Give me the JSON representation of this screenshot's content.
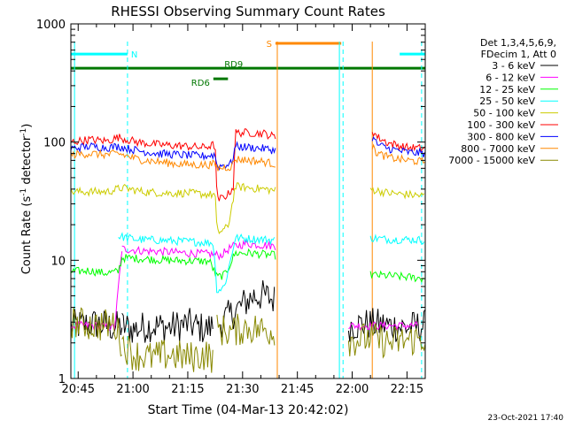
{
  "chart_data": {
    "type": "line",
    "title": "RHESSI Observing Summary Count Rates",
    "xlabel": "Start Time (04-Mar-13 20:42:02)",
    "ylabel": "Count Rate (s⁻¹ detector⁻¹)",
    "ylabel_main": "Count Rate (s",
    "ylabel_sup1": "-1",
    "ylabel_mid": " detector",
    "ylabel_sup2": "-1",
    "ylabel_end": ")",
    "y_scale": "log",
    "ylim": [
      1,
      1000
    ],
    "xlim_minutes": [
      -2,
      95
    ],
    "x_tick_minutes": [
      0,
      15,
      30,
      45,
      60,
      75,
      90
    ],
    "x_tick_labels": [
      "20:45",
      "21:00",
      "21:15",
      "21:30",
      "21:45",
      "22:00",
      "22:15"
    ],
    "y_tick_values": [
      1,
      10,
      100,
      1000
    ],
    "y_tick_labels": [
      "1",
      "10",
      "100",
      "1000"
    ],
    "legend_placement": "right",
    "legend_header": [
      "Det 1,3,4,5,6,9,",
      "FDecim 1, Att 0"
    ],
    "series": [
      {
        "name": "3 - 6 keV",
        "color": "#000000",
        "segments": [
          [
            -2,
            12
          ],
          [
            12,
            37
          ],
          [
            39,
            54
          ],
          [
            74,
            95
          ]
        ],
        "points": [
          [
            -2,
            2.8
          ],
          [
            5,
            2.9
          ],
          [
            10,
            2.7
          ],
          [
            12,
            2.8
          ],
          [
            15,
            2.6
          ],
          [
            20,
            2.8
          ],
          [
            25,
            2.7
          ],
          [
            30,
            2.9
          ],
          [
            35,
            2.6
          ],
          [
            37,
            2.8
          ],
          [
            39,
            3.0
          ],
          [
            42,
            3.5
          ],
          [
            45,
            4.2
          ],
          [
            48,
            5.0
          ],
          [
            51,
            5.0
          ],
          [
            54,
            4.6
          ],
          [
            74,
            2.8
          ],
          [
            80,
            2.9
          ],
          [
            85,
            2.8
          ],
          [
            90,
            2.7
          ],
          [
            95,
            2.8
          ]
        ]
      },
      {
        "name": "6 - 12 keV",
        "color": "#ff00ff",
        "segments": [
          [
            -2,
            12
          ],
          [
            12,
            54
          ],
          [
            74,
            93
          ]
        ],
        "points": [
          [
            -2,
            2.8
          ],
          [
            5,
            2.8
          ],
          [
            10,
            2.7
          ],
          [
            12,
            12.5
          ],
          [
            18,
            12.0
          ],
          [
            24,
            11.8
          ],
          [
            30,
            11.5
          ],
          [
            36,
            11.3
          ],
          [
            39,
            11.0
          ],
          [
            42,
            13.0
          ],
          [
            46,
            13.8
          ],
          [
            50,
            13.5
          ],
          [
            54,
            13.2
          ],
          [
            74,
            2.8
          ],
          [
            80,
            2.8
          ],
          [
            85,
            2.8
          ],
          [
            93,
            2.8
          ]
        ]
      },
      {
        "name": "12 - 25 keV",
        "color": "#00ff00",
        "segments": [
          [
            -2,
            12
          ],
          [
            12,
            54
          ],
          [
            80,
            95
          ]
        ],
        "points": [
          [
            -2,
            8.0
          ],
          [
            3,
            8.2
          ],
          [
            7,
            7.8
          ],
          [
            11,
            8.0
          ],
          [
            12,
            10.5
          ],
          [
            18,
            10.3
          ],
          [
            24,
            10.0
          ],
          [
            30,
            9.9
          ],
          [
            36,
            9.8
          ],
          [
            38,
            7.2
          ],
          [
            40,
            7.5
          ],
          [
            41,
            8.5
          ],
          [
            43,
            11.5
          ],
          [
            47,
            11.5
          ],
          [
            51,
            11.2
          ],
          [
            54,
            11.0
          ],
          [
            80,
            7.5
          ],
          [
            85,
            7.4
          ],
          [
            90,
            7.2
          ],
          [
            95,
            7.0
          ]
        ]
      },
      {
        "name": "25 - 50 keV",
        "color": "#00ffff",
        "segments": [
          [
            11,
            54
          ],
          [
            80,
            95
          ]
        ],
        "points": [
          [
            11,
            16.0
          ],
          [
            16,
            15.0
          ],
          [
            22,
            14.8
          ],
          [
            28,
            14.5
          ],
          [
            34,
            14.2
          ],
          [
            37,
            14.0
          ],
          [
            38,
            5.5
          ],
          [
            40,
            6.0
          ],
          [
            41,
            8.0
          ],
          [
            43,
            15.5
          ],
          [
            47,
            15.2
          ],
          [
            51,
            15.0
          ],
          [
            54,
            14.8
          ],
          [
            80,
            15.5
          ],
          [
            85,
            15.0
          ],
          [
            90,
            15.0
          ],
          [
            95,
            14.8
          ]
        ]
      },
      {
        "name": "50 - 100 keV",
        "color": "#cccc00",
        "segments": [
          [
            -2,
            54
          ],
          [
            80,
            95
          ]
        ],
        "points": [
          [
            -2,
            38
          ],
          [
            3,
            38
          ],
          [
            8,
            38
          ],
          [
            12,
            41
          ],
          [
            18,
            38
          ],
          [
            24,
            37
          ],
          [
            30,
            37
          ],
          [
            36,
            36
          ],
          [
            37.5,
            36
          ],
          [
            38,
            17
          ],
          [
            41,
            19
          ],
          [
            43,
            42
          ],
          [
            47,
            41
          ],
          [
            51,
            40
          ],
          [
            54,
            39
          ],
          [
            80,
            40
          ],
          [
            85,
            37
          ],
          [
            90,
            36
          ],
          [
            95,
            35
          ]
        ]
      },
      {
        "name": "100 - 300 keV",
        "color": "#ff0000",
        "segments": [
          [
            -2,
            54
          ],
          [
            80.5,
            95
          ]
        ],
        "points": [
          [
            -2,
            100
          ],
          [
            3,
            105
          ],
          [
            8,
            102
          ],
          [
            11,
            110
          ],
          [
            16,
            100
          ],
          [
            22,
            95
          ],
          [
            28,
            93
          ],
          [
            34,
            90
          ],
          [
            37.5,
            95
          ],
          [
            38,
            32
          ],
          [
            41,
            36
          ],
          [
            42.5,
            42
          ],
          [
            43,
            120
          ],
          [
            47,
            120
          ],
          [
            51,
            118
          ],
          [
            54,
            110
          ],
          [
            80.5,
            125
          ],
          [
            82,
            110
          ],
          [
            85,
            98
          ],
          [
            90,
            90
          ],
          [
            95,
            88
          ]
        ]
      },
      {
        "name": "300 - 800 keV",
        "color": "#0000ff",
        "segments": [
          [
            -2,
            54
          ],
          [
            80.5,
            95
          ]
        ],
        "points": [
          [
            -2,
            88
          ],
          [
            3,
            92
          ],
          [
            8,
            90
          ],
          [
            11,
            92
          ],
          [
            16,
            85
          ],
          [
            22,
            80
          ],
          [
            28,
            78
          ],
          [
            34,
            76
          ],
          [
            37.5,
            78
          ],
          [
            38,
            62
          ],
          [
            40,
            64
          ],
          [
            42,
            66
          ],
          [
            43,
            92
          ],
          [
            47,
            90
          ],
          [
            51,
            88
          ],
          [
            54,
            85
          ],
          [
            80.5,
            110
          ],
          [
            82,
            95
          ],
          [
            85,
            88
          ],
          [
            90,
            82
          ],
          [
            95,
            80
          ]
        ]
      },
      {
        "name": "800 - 7000 keV",
        "color": "#ff8800",
        "segments": [
          [
            -2,
            54
          ],
          [
            80.5,
            95
          ]
        ],
        "points": [
          [
            -2,
            78
          ],
          [
            3,
            80
          ],
          [
            8,
            78
          ],
          [
            11,
            80
          ],
          [
            16,
            72
          ],
          [
            22,
            68
          ],
          [
            28,
            65
          ],
          [
            34,
            64
          ],
          [
            37.5,
            65
          ],
          [
            38,
            60
          ],
          [
            42,
            62
          ],
          [
            43,
            72
          ],
          [
            47,
            70
          ],
          [
            51,
            68
          ],
          [
            54,
            65
          ],
          [
            80.5,
            90
          ],
          [
            82,
            80
          ],
          [
            85,
            74
          ],
          [
            90,
            70
          ],
          [
            95,
            68
          ]
        ]
      },
      {
        "name": "7000 - 15000 keV",
        "color": "#888800",
        "segments": [
          [
            -2,
            12
          ],
          [
            12,
            37
          ],
          [
            38,
            54
          ],
          [
            74,
            95
          ]
        ],
        "points": [
          [
            -2,
            3.0
          ],
          [
            5,
            2.8
          ],
          [
            10,
            2.9
          ],
          [
            12,
            2.0
          ],
          [
            15,
            1.6
          ],
          [
            20,
            1.5
          ],
          [
            25,
            1.6
          ],
          [
            30,
            1.5
          ],
          [
            35,
            1.6
          ],
          [
            37,
            1.5
          ],
          [
            38,
            2.6
          ],
          [
            42,
            2.5
          ],
          [
            46,
            2.7
          ],
          [
            50,
            2.6
          ],
          [
            54,
            2.5
          ],
          [
            74,
            2.1
          ],
          [
            80,
            2.2
          ],
          [
            85,
            2.0
          ],
          [
            90,
            2.1
          ],
          [
            95,
            2.2
          ]
        ]
      }
    ],
    "flag_bars": [
      {
        "label": "N",
        "color": "#00ffff",
        "level": 0.915,
        "spans": [
          [
            -2,
            13.5
          ],
          [
            88,
            95
          ]
        ]
      },
      {
        "label": "",
        "color": "#007700",
        "level": 0.875,
        "spans": [
          [
            -2,
            95
          ]
        ]
      },
      {
        "label": "RD6",
        "color": "#007700",
        "level": 0.845,
        "spans": [
          [
            37,
            41
          ]
        ]
      },
      {
        "label": "RD9",
        "color": "#007700",
        "level": 0.875,
        "spans": []
      },
      {
        "label": "S",
        "color": "#ff8800",
        "level": 0.945,
        "spans": [
          [
            54,
            72
          ]
        ]
      }
    ],
    "vertical_lines": [
      {
        "x": -1,
        "color": "#00ffff",
        "style": "solid"
      },
      {
        "x": 13.5,
        "color": "#00ffff",
        "style": "dashed"
      },
      {
        "x": 54.5,
        "color": "#ff8800",
        "style": "solid"
      },
      {
        "x": 71.5,
        "color": "#00ffff",
        "style": "solid"
      },
      {
        "x": 72.5,
        "color": "#00ffff",
        "style": "dashed"
      },
      {
        "x": 80.5,
        "color": "#ff8800",
        "style": "solid"
      },
      {
        "x": 94,
        "color": "#00ffff",
        "style": "dashed"
      }
    ],
    "footer_date": "23-Oct-2021 17:40"
  }
}
